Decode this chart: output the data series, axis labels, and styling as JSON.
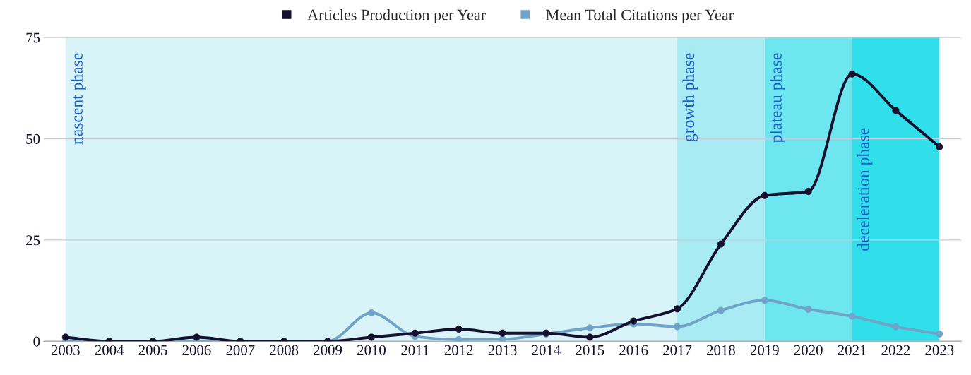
{
  "chart_data": {
    "type": "line",
    "categories": [
      "2003",
      "2004",
      "2005",
      "2006",
      "2007",
      "2008",
      "2009",
      "2010",
      "2011",
      "2012",
      "2013",
      "2014",
      "2015",
      "2016",
      "2017",
      "2018",
      "2019",
      "2020",
      "2021",
      "2022",
      "2023"
    ],
    "series": [
      {
        "name": "Articles Production per Year",
        "color": "#14102e",
        "values": [
          1,
          0,
          0,
          1,
          0,
          0,
          0,
          1,
          2,
          3,
          2,
          2,
          1,
          5,
          8,
          24,
          36,
          37,
          66,
          57,
          48
        ]
      },
      {
        "name": "Mean Total Citations per Year",
        "color": "#6fa3c8",
        "values": [
          0,
          0,
          0,
          0,
          0,
          0,
          0,
          7,
          1.2,
          0.4,
          0.5,
          1.8,
          3.3,
          4.3,
          3.6,
          7.6,
          10.1,
          7.9,
          6.2,
          3.6,
          1.8
        ]
      }
    ],
    "ylim": [
      0,
      75
    ],
    "yticks": [
      0,
      25,
      50,
      75
    ],
    "grid": "y",
    "legend": "top",
    "marker": "circle",
    "line_style": "solid",
    "bands": [
      {
        "axis": "x",
        "from": "2003",
        "to": "2017",
        "label": "nascent phase",
        "color": "#d9f4f8"
      },
      {
        "axis": "x",
        "from": "2017",
        "to": "2019",
        "label": "growth phase",
        "color": "#a8ebf3"
      },
      {
        "axis": "x",
        "from": "2019",
        "to": "2021",
        "label": "plateau phase",
        "color": "#6ee6ef"
      },
      {
        "axis": "x",
        "from": "2021",
        "to": "2023",
        "label": "deceleration phase",
        "color": "#30dfea"
      }
    ]
  }
}
